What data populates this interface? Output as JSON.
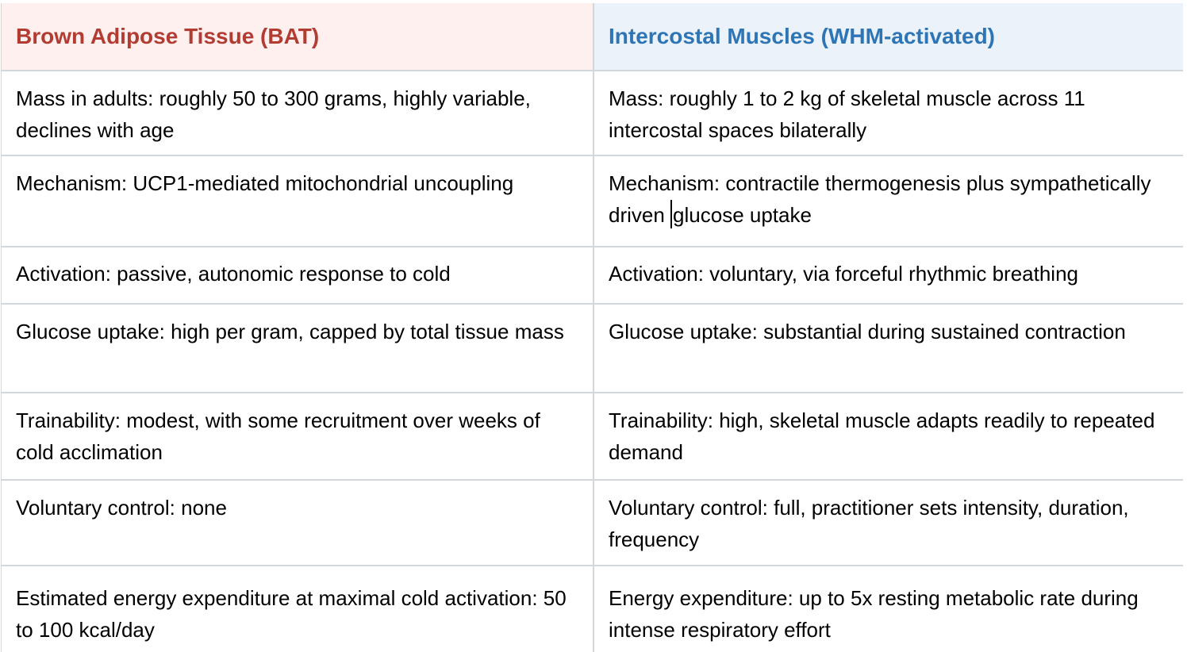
{
  "theme": {
    "page_bg": "#ffffff",
    "border": "#d2d7dc",
    "body_text": "#000000",
    "bat_header_bg": "#fdf0ee",
    "bat_header_text": "#b23b32",
    "im_header_bg": "#ebf2fa",
    "im_header_text": "#2e75b5"
  },
  "table": {
    "header": {
      "left": {
        "label": "Brown Adipose Tissue (BAT)"
      },
      "right": {
        "label": "Intercostal Muscles (WHM-activated)"
      }
    },
    "rows": [
      {
        "left": "Mass in adults: roughly 50 to 300 grams, highly variable, declines with age",
        "right": "Mass: roughly 1 to 2 kg of skeletal muscle across 11 intercostal spaces bilaterally"
      },
      {
        "left": "Mechanism: UCP1-mediated mitochondrial uncoupling",
        "right_before_cursor": "Mechanism: contractile thermogenesis plus sympathetically driven ",
        "right_after_cursor": "glucose uptake"
      },
      {
        "left": "Activation: passive, autonomic response to cold",
        "right": "Activation: voluntary, via forceful rhythmic breathing"
      },
      {
        "left": "Glucose uptake: high per gram, capped by total tissue mass",
        "right": "Glucose uptake: substantial during sustained contraction"
      },
      {
        "left": "Trainability: modest, with some recruitment over weeks of cold acclimation",
        "right": "Trainability: high, skeletal muscle adapts readily to repeated demand"
      },
      {
        "left": "Voluntary control: none",
        "right": "Voluntary control: full, practitioner sets intensity, duration, frequency"
      },
      {
        "left": "Estimated energy expenditure at maximal cold activation: 50 to 100 kcal/day",
        "right": "Energy expenditure: up to 5x resting metabolic rate during intense respiratory effort"
      }
    ]
  }
}
